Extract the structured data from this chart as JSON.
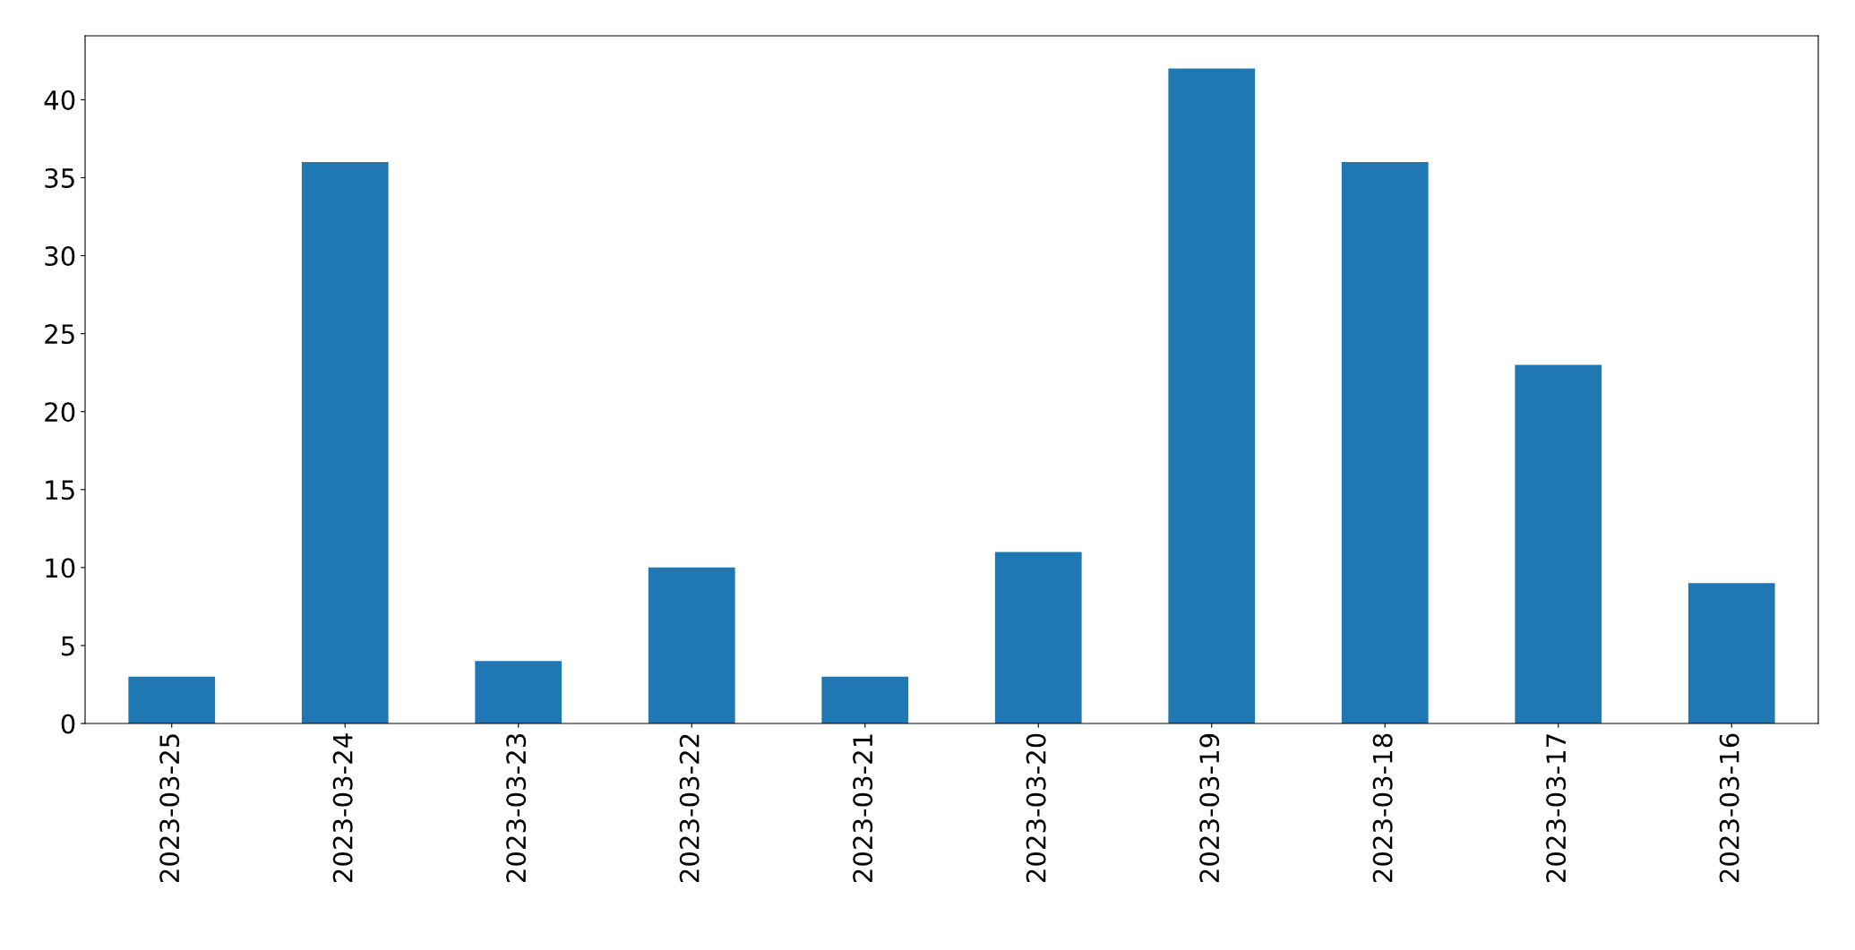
{
  "chart_data": {
    "type": "bar",
    "categories": [
      "2023-03-25",
      "2023-03-24",
      "2023-03-23",
      "2023-03-22",
      "2023-03-21",
      "2023-03-20",
      "2023-03-19",
      "2023-03-18",
      "2023-03-17",
      "2023-03-16"
    ],
    "values": [
      3,
      36,
      4,
      10,
      3,
      11,
      42,
      36,
      23,
      9
    ],
    "color": "#1f77b4",
    "ylim": [
      0,
      44.1
    ],
    "yticks": [
      0,
      5,
      10,
      15,
      20,
      25,
      30,
      35,
      40
    ],
    "grid": false,
    "legend": false
  }
}
